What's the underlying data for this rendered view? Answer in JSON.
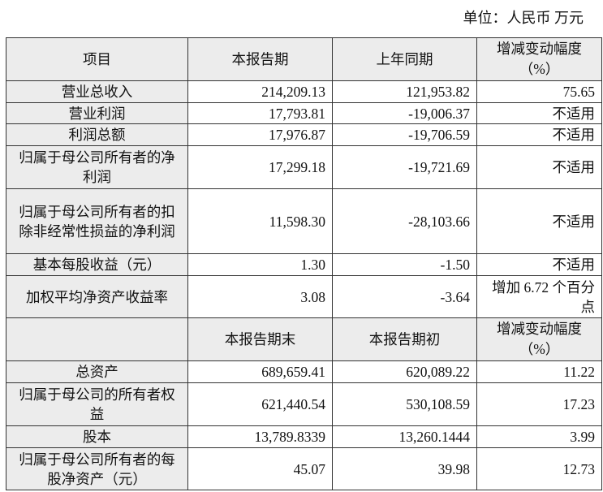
{
  "unit_label": "单位：人民币 万元",
  "header1": {
    "item": "项目",
    "current": "本报告期",
    "prior": "上年同期",
    "change": "增减变动幅度",
    "change_unit": "（%）"
  },
  "rows1": [
    {
      "label": "营业总收入",
      "current": "214,209.13",
      "prior": "121,953.82",
      "change": "75.65"
    },
    {
      "label": "营业利润",
      "current": "17,793.81",
      "prior": "-19,006.37",
      "change": "不适用"
    },
    {
      "label": "利润总额",
      "current": "17,976.87",
      "prior": "-19,706.59",
      "change": "不适用"
    },
    {
      "label": "归属于母公司所有者的净利润",
      "current": "17,299.18",
      "prior": "-19,721.69",
      "change": "不适用"
    },
    {
      "label": "归属于母公司所有者的扣除非经常性损益的净利润",
      "current": "11,598.30",
      "prior": "-28,103.66",
      "change": "不适用"
    },
    {
      "label": "基本每股收益（元）",
      "current": "1.30",
      "prior": "-1.50",
      "change": "不适用"
    },
    {
      "label": "加权平均净资产收益率",
      "current": "3.08",
      "prior": "-3.64",
      "change": "增加 6.72 个百分点"
    }
  ],
  "header2": {
    "item": "",
    "current": "本报告期末",
    "prior": "本报告期初",
    "change": "增减变动幅度",
    "change_unit": "（%）"
  },
  "rows2": [
    {
      "label": "总资产",
      "current": "689,659.41",
      "prior": "620,089.22",
      "change": "11.22"
    },
    {
      "label": "归属于母公司的所有者权益",
      "current": "621,440.54",
      "prior": "530,108.59",
      "change": "17.23"
    },
    {
      "label": "股本",
      "current": "13,789.8339",
      "prior": "13,260.1444",
      "change": "3.99"
    },
    {
      "label": "归属于母公司所有者的每股净资产（元）",
      "current": "45.07",
      "prior": "39.98",
      "change": "12.73"
    }
  ]
}
